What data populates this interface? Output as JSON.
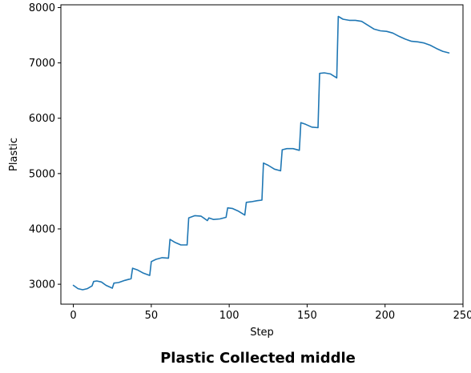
{
  "chart_data": {
    "type": "line",
    "title": "Plastic Collected middle",
    "xlabel": "Step",
    "ylabel": "Plastic",
    "xlim": [
      -8,
      250
    ],
    "ylim": [
      2640,
      8050
    ],
    "xticks": [
      0,
      50,
      100,
      150,
      200,
      250
    ],
    "yticks": [
      3000,
      4000,
      5000,
      6000,
      7000,
      8000
    ],
    "grid": false,
    "legend": "none",
    "series": [
      {
        "color": "#1f77b4",
        "x": [
          0,
          3,
          6,
          9,
          12,
          13,
          15,
          18,
          21,
          25,
          26,
          29,
          33,
          37,
          38,
          41,
          45,
          49,
          50,
          53,
          57,
          61,
          62,
          65,
          69,
          73,
          74,
          78,
          82,
          86,
          87,
          90,
          94,
          98,
          99,
          102,
          106,
          110,
          111,
          114,
          118,
          121,
          122,
          125,
          129,
          133,
          134,
          137,
          141,
          145,
          146,
          149,
          153,
          157,
          158,
          161,
          165,
          169,
          170,
          173,
          177,
          181,
          185,
          189,
          193,
          197,
          201,
          205,
          209,
          213,
          217,
          221,
          225,
          229,
          233,
          237,
          241
        ],
        "y": [
          2980,
          2920,
          2900,
          2920,
          2970,
          3050,
          3060,
          3040,
          2980,
          2930,
          3020,
          3030,
          3070,
          3100,
          3290,
          3260,
          3200,
          3160,
          3410,
          3450,
          3480,
          3470,
          3810,
          3760,
          3710,
          3710,
          4200,
          4240,
          4230,
          4150,
          4200,
          4170,
          4180,
          4210,
          4380,
          4370,
          4320,
          4250,
          4480,
          4490,
          4510,
          4520,
          5190,
          5150,
          5080,
          5050,
          5430,
          5450,
          5450,
          5420,
          5920,
          5890,
          5840,
          5830,
          6810,
          6820,
          6800,
          6730,
          7840,
          7790,
          7770,
          7770,
          7750,
          7680,
          7610,
          7580,
          7570,
          7540,
          7480,
          7430,
          7390,
          7380,
          7360,
          7320,
          7260,
          7210,
          7180
        ]
      }
    ]
  }
}
